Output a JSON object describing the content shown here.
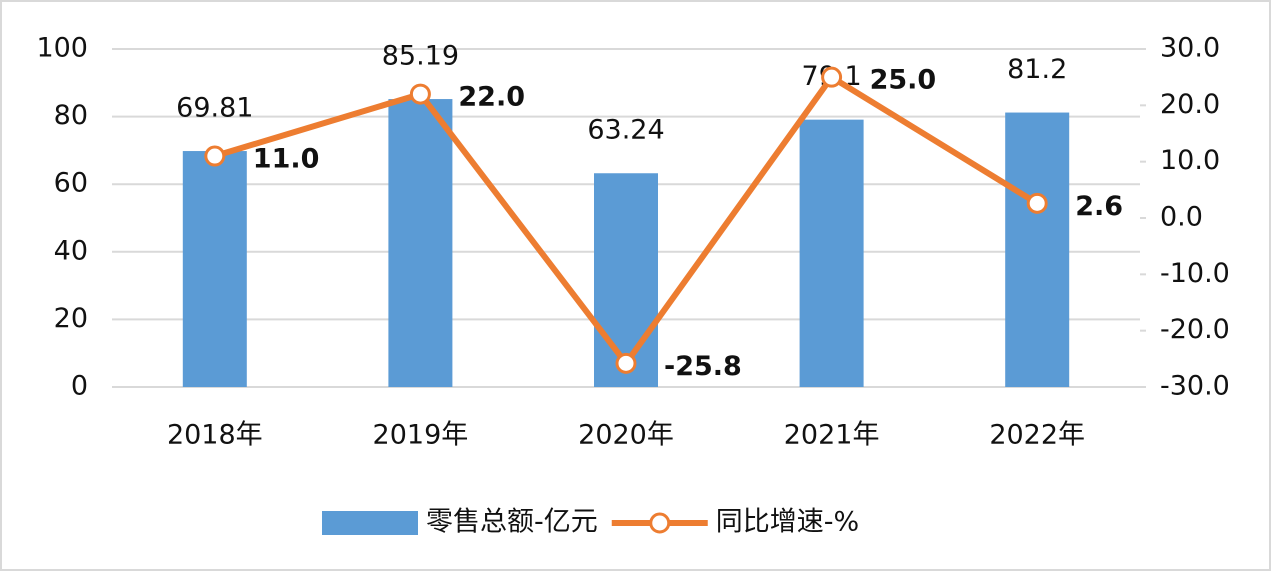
{
  "chart_data": {
    "type": "combo",
    "categories": [
      "2018年",
      "2019年",
      "2020年",
      "2021年",
      "2022年"
    ],
    "series": [
      {
        "name": "零售总额-亿元",
        "type": "bar",
        "color": "#5b9bd5",
        "values": [
          69.81,
          85.19,
          63.24,
          79.1,
          81.2
        ]
      },
      {
        "name": "同比增速-%",
        "type": "line",
        "axis": "y2",
        "color": "#ed7d31",
        "values": [
          11.0,
          22.0,
          -25.8,
          25.0,
          2.6
        ],
        "value_labels": [
          "11.0",
          "22.0",
          "-25.8",
          "25.0",
          "2.6"
        ]
      }
    ],
    "ylim": [
      0,
      100
    ],
    "yticks": [
      0,
      20,
      40,
      60,
      80,
      100
    ],
    "y2lim": [
      -30,
      30
    ],
    "y2ticks": [
      {
        "value": -30,
        "label": "-30.0"
      },
      {
        "value": -20,
        "label": "-20.0"
      },
      {
        "value": -10,
        "label": "-10.0"
      },
      {
        "value": 0,
        "label": "0.0"
      },
      {
        "value": 10,
        "label": "10.0"
      },
      {
        "value": 20,
        "label": "20.0"
      },
      {
        "value": 30,
        "label": "30.0"
      }
    ],
    "grid": true,
    "legend": "bottom"
  }
}
